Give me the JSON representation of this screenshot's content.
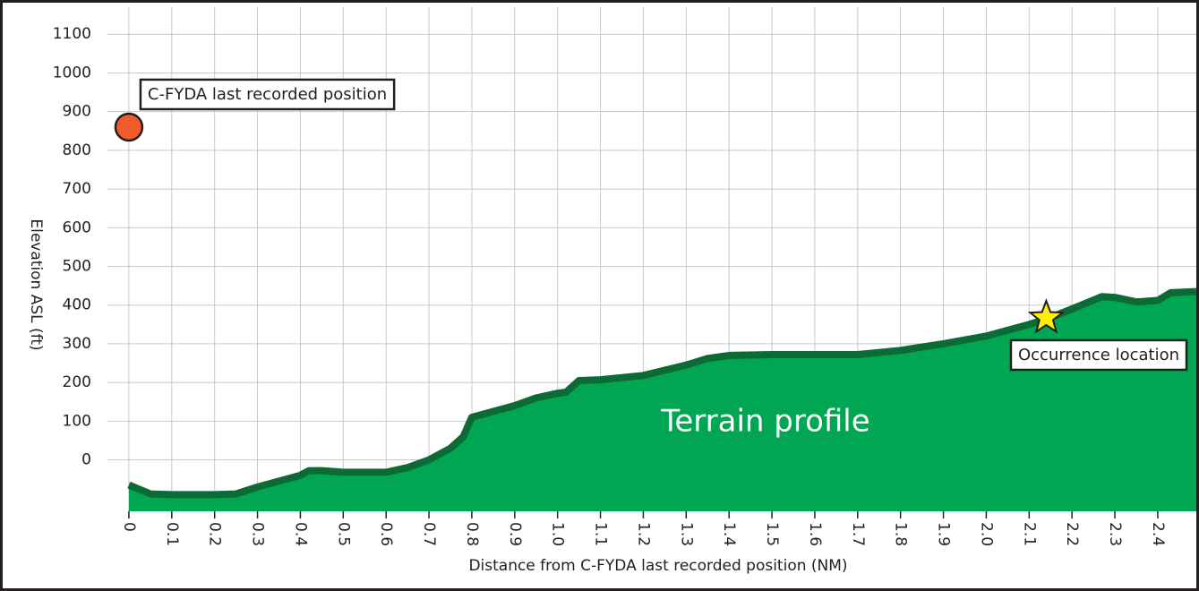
{
  "chart_data": {
    "type": "area",
    "x_label": "Distance from C-FYDA last recorded position (NM)",
    "y_label": "Elevation ASL (ft)",
    "xlim": [
      -0.05,
      2.49
    ],
    "ylim": [
      -133,
      1170
    ],
    "xticks": [
      0,
      0.1,
      0.2,
      0.3,
      0.4,
      0.5,
      0.6,
      0.7,
      0.8,
      0.9,
      {
        "value": 1,
        "label": "1.0"
      },
      1.1,
      1.2,
      1.3,
      1.4,
      1.5,
      1.6,
      1.7,
      1.8,
      1.9,
      {
        "value": 2,
        "label": "2.0"
      },
      2.1,
      2.2,
      2.3,
      2.4
    ],
    "yticks": [
      0,
      100,
      200,
      300,
      400,
      500,
      600,
      700,
      800,
      900,
      1000,
      1100
    ],
    "grid": true,
    "series": [
      {
        "name": "Terrain profile",
        "color": "#00a651",
        "edge_color": "#0c6b35",
        "x": [
          0,
          0.05,
          0.1,
          0.2,
          0.25,
          0.3,
          0.35,
          0.4,
          0.42,
          0.45,
          0.5,
          0.6,
          0.65,
          0.7,
          0.75,
          0.78,
          0.8,
          0.85,
          0.9,
          0.95,
          1.0,
          1.02,
          1.05,
          1.1,
          1.2,
          1.3,
          1.35,
          1.4,
          1.5,
          1.6,
          1.7,
          1.8,
          1.9,
          2.0,
          2.1,
          2.15,
          2.2,
          2.27,
          2.3,
          2.35,
          2.4,
          2.43,
          2.49
        ],
        "values": [
          -65,
          -88,
          -90,
          -90,
          -88,
          -70,
          -55,
          -40,
          -28,
          -28,
          -32,
          -32,
          -20,
          0,
          30,
          60,
          110,
          125,
          140,
          160,
          172,
          175,
          205,
          207,
          218,
          245,
          262,
          270,
          272,
          272,
          272,
          283,
          300,
          320,
          350,
          368,
          390,
          422,
          420,
          408,
          412,
          432,
          435
        ]
      }
    ],
    "points": [
      {
        "name": "C-FYDA last recorded position",
        "x": 0,
        "y": 860,
        "marker": "circle",
        "color": "#f15a2b"
      },
      {
        "name": "Occurrence location",
        "x": 2.14,
        "y": 367,
        "marker": "star",
        "color": "#fff200"
      }
    ]
  }
}
